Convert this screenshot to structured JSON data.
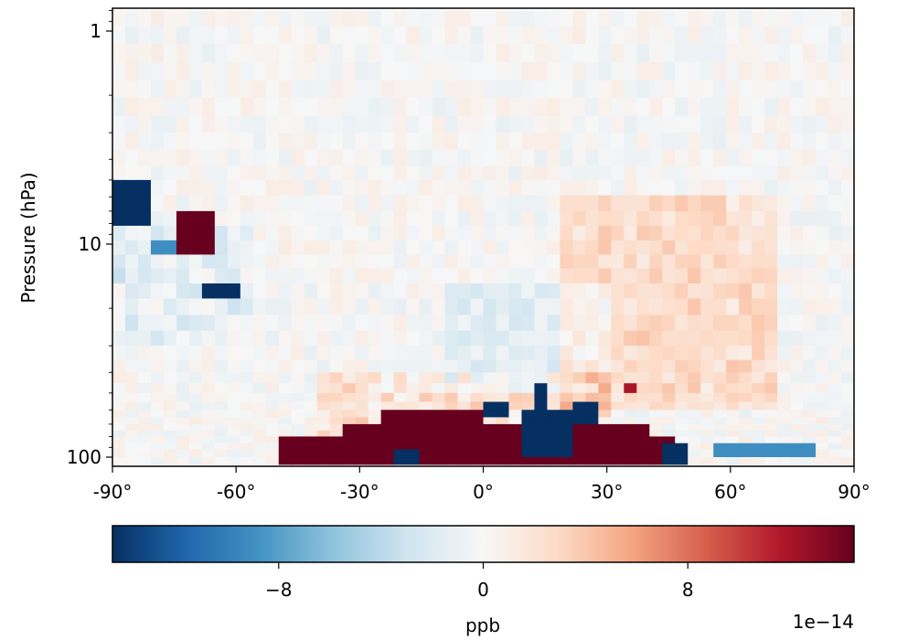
{
  "chart_data": {
    "type": "heatmap",
    "title": "",
    "xlabel": "",
    "ylabel": "Pressure (hPa)",
    "x_ticks": [
      "-90°",
      "-60°",
      "-30°",
      "0°",
      "30°",
      "60°",
      "90°"
    ],
    "xlim": [
      -90,
      90
    ],
    "y_scale": "log",
    "y_inverted": true,
    "ylim": [
      110,
      0.8
    ],
    "y_ticks": [
      "1",
      "10",
      "100"
    ],
    "colormap": "RdBu_r",
    "colorbar": {
      "label": "ppb",
      "ticks": [
        "−8",
        "0",
        "8"
      ],
      "tick_values": [
        -8,
        0,
        8
      ],
      "range": [
        -14.5,
        14.5
      ],
      "offset_text": "1e−14",
      "orientation": "horizontal"
    },
    "grid": false,
    "features": [
      {
        "lat": [
          -90,
          -80
        ],
        "p": [
          5,
          8
        ],
        "value": -15
      },
      {
        "lat": [
          -76,
          -66
        ],
        "p": [
          7.5,
          11
        ],
        "value": 15
      },
      {
        "lat": [
          -82,
          -74
        ],
        "p": [
          9.5,
          11
        ],
        "value": -9
      },
      {
        "lat": [
          -67,
          -58
        ],
        "p": [
          15,
          19
        ],
        "value": -15
      },
      {
        "lat": [
          -50,
          48
        ],
        "p": [
          80,
          108
        ],
        "value": 15
      },
      {
        "lat": [
          -35,
          40
        ],
        "p": [
          68,
          80
        ],
        "value": 15
      },
      {
        "lat": [
          -25,
          -1
        ],
        "p": [
          60,
          68
        ],
        "value": 15
      },
      {
        "lat": [
          8,
          22
        ],
        "p": [
          60,
          100
        ],
        "value": -15
      },
      {
        "lat": [
          0,
          5
        ],
        "p": [
          55,
          65
        ],
        "value": -15
      },
      {
        "lat": [
          12,
          17
        ],
        "p": [
          45,
          60
        ],
        "value": -15
      },
      {
        "lat": [
          22,
          27
        ],
        "p": [
          55,
          68
        ],
        "value": -15
      },
      {
        "lat": [
          -23,
          -17
        ],
        "p": [
          95,
          108
        ],
        "value": -15
      },
      {
        "lat": [
          33,
          36
        ],
        "p": [
          45,
          52
        ],
        "value": 12
      },
      {
        "lat": [
          57,
          80
        ],
        "p": [
          85,
          100
        ],
        "value": -9
      },
      {
        "lat": [
          45,
          49
        ],
        "p": [
          85,
          108
        ],
        "value": -15
      }
    ]
  }
}
